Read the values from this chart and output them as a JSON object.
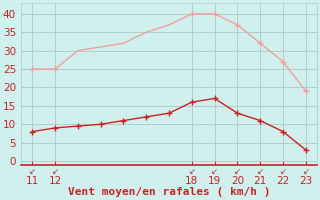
{
  "x_rafales": [
    11,
    12,
    13,
    14,
    15,
    16,
    17,
    18,
    19,
    20,
    21,
    22,
    23
  ],
  "y_rafales": [
    25,
    25,
    30,
    31,
    32,
    35,
    37,
    40,
    40,
    37,
    32,
    27,
    19
  ],
  "x_moyen": [
    11,
    12,
    13,
    14,
    15,
    16,
    17,
    18,
    19,
    20,
    21,
    22,
    23
  ],
  "y_moyen": [
    8,
    9,
    9.5,
    10,
    11,
    12,
    13,
    16,
    17,
    13,
    11,
    8,
    3
  ],
  "color_rafales": "#f4a0a0",
  "color_moyen": "#cc2222",
  "bg_color": "#cff0ec",
  "grid_color": "#b0c8c8",
  "axis_color": "#cc2222",
  "xlabel": "Vent moyen/en rafales ( km/h )",
  "xlim": [
    10.5,
    23.5
  ],
  "ylim": [
    -1,
    43
  ],
  "xticks": [
    11,
    12,
    18,
    19,
    20,
    21,
    22,
    23
  ],
  "yticks": [
    0,
    5,
    10,
    15,
    20,
    25,
    30,
    35,
    40
  ],
  "xlabel_fontsize": 8,
  "tick_fontsize": 7.5,
  "marker_rafales": [
    11,
    12,
    18,
    19,
    20,
    21,
    22,
    23
  ],
  "ymarker_rafales": [
    25,
    25,
    40,
    40,
    37,
    32,
    27,
    19
  ],
  "marker_moyen": [
    11,
    12,
    13,
    14,
    15,
    16,
    17,
    18,
    19,
    20,
    21,
    22,
    23
  ],
  "ymarker_moyen": [
    8,
    9,
    9.5,
    10,
    11,
    12,
    13,
    16,
    17,
    13,
    11,
    8,
    3
  ]
}
